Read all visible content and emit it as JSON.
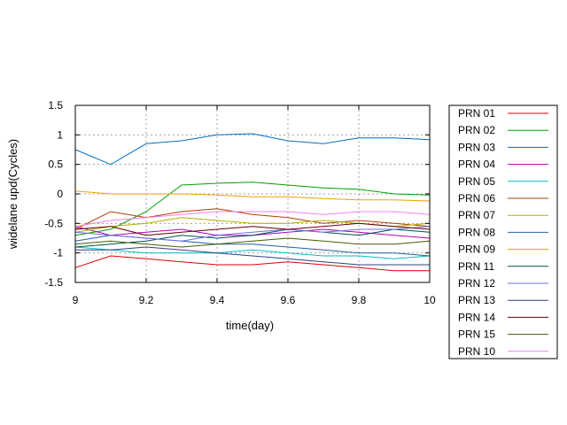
{
  "chart_data": {
    "type": "line",
    "xlabel": "time(day)",
    "ylabel": "widelane upd(Cycles)",
    "xlim": [
      9,
      10
    ],
    "ylim": [
      -1.5,
      1.5
    ],
    "x_ticks": [
      "9",
      "9.2",
      "9.4",
      "9.6",
      "9.8",
      "10"
    ],
    "y_ticks": [
      "1.5",
      "1",
      "0.5",
      "0",
      "-0.5",
      "-1",
      "-1.5"
    ],
    "grid": true,
    "legend_position": "right",
    "x": [
      9.0,
      9.1,
      9.2,
      9.3,
      9.4,
      9.5,
      9.6,
      9.7,
      9.8,
      9.9,
      10.0
    ],
    "series": [
      {
        "name": "PRN 01",
        "color": "#e00000",
        "values": [
          -1.25,
          -1.05,
          -1.1,
          -1.15,
          -1.2,
          -1.2,
          -1.15,
          -1.2,
          -1.25,
          -1.3,
          -1.3
        ]
      },
      {
        "name": "PRN 02",
        "color": "#00a000",
        "values": [
          -0.7,
          -0.6,
          -0.3,
          0.15,
          0.18,
          0.2,
          0.15,
          0.1,
          0.08,
          0.0,
          -0.02
        ]
      },
      {
        "name": "PRN 03",
        "color": "#0070c0",
        "values": [
          0.75,
          0.5,
          0.85,
          0.9,
          1.0,
          1.02,
          0.9,
          0.85,
          0.95,
          0.95,
          0.92
        ]
      },
      {
        "name": "PRN 04",
        "color": "#b000b0",
        "values": [
          -0.55,
          -0.7,
          -0.65,
          -0.6,
          -0.7,
          -0.7,
          -0.65,
          -0.6,
          -0.65,
          -0.7,
          -0.75
        ]
      },
      {
        "name": "PRN 05",
        "color": "#00c0c0",
        "values": [
          -0.9,
          -0.95,
          -1.0,
          -1.0,
          -1.0,
          -0.95,
          -1.0,
          -1.05,
          -1.05,
          -1.1,
          -1.05
        ]
      },
      {
        "name": "PRN 06",
        "color": "#b04000",
        "values": [
          -0.6,
          -0.3,
          -0.4,
          -0.3,
          -0.25,
          -0.35,
          -0.4,
          -0.5,
          -0.45,
          -0.5,
          -0.55
        ]
      },
      {
        "name": "PRN 07",
        "color": "#b0b000",
        "values": [
          -0.65,
          -0.55,
          -0.5,
          -0.4,
          -0.45,
          -0.5,
          -0.5,
          -0.45,
          -0.5,
          -0.55,
          -0.5
        ]
      },
      {
        "name": "PRN 08",
        "color": "#2060a0",
        "values": [
          -0.8,
          -0.7,
          -0.75,
          -0.8,
          -0.85,
          -0.85,
          -0.9,
          -0.95,
          -1.0,
          -1.0,
          -1.05
        ]
      },
      {
        "name": "PRN 09",
        "color": "#f0a000",
        "values": [
          0.05,
          0.0,
          0.0,
          0.0,
          -0.02,
          -0.05,
          -0.05,
          -0.08,
          -0.1,
          -0.1,
          -0.12
        ]
      },
      {
        "name": "PRN 11",
        "color": "#005050",
        "values": [
          -0.9,
          -0.85,
          -0.8,
          -0.7,
          -0.75,
          -0.7,
          -0.6,
          -0.65,
          -0.7,
          -0.6,
          -0.65
        ]
      },
      {
        "name": "PRN 12",
        "color": "#7070e0",
        "values": [
          -0.65,
          -0.7,
          -0.75,
          -0.8,
          -0.7,
          -0.65,
          -0.6,
          -0.65,
          -0.6,
          -0.6,
          -0.55
        ]
      },
      {
        "name": "PRN 13",
        "color": "#304080",
        "values": [
          -0.95,
          -0.95,
          -0.9,
          -0.95,
          -1.0,
          -1.05,
          -1.1,
          -1.15,
          -1.2,
          -1.2,
          -1.2
        ]
      },
      {
        "name": "PRN 14",
        "color": "#600000",
        "values": [
          -0.6,
          -0.55,
          -0.7,
          -0.65,
          -0.6,
          -0.55,
          -0.6,
          -0.55,
          -0.5,
          -0.55,
          -0.6
        ]
      },
      {
        "name": "PRN 15",
        "color": "#406000",
        "values": [
          -0.85,
          -0.8,
          -0.85,
          -0.9,
          -0.85,
          -0.8,
          -0.75,
          -0.8,
          -0.85,
          -0.85,
          -0.8
        ]
      },
      {
        "name": "PRN 10",
        "color": "#f080f0",
        "values": [
          -0.55,
          -0.45,
          -0.4,
          -0.35,
          -0.3,
          -0.3,
          -0.3,
          -0.35,
          -0.3,
          -0.3,
          -0.35
        ]
      }
    ]
  }
}
